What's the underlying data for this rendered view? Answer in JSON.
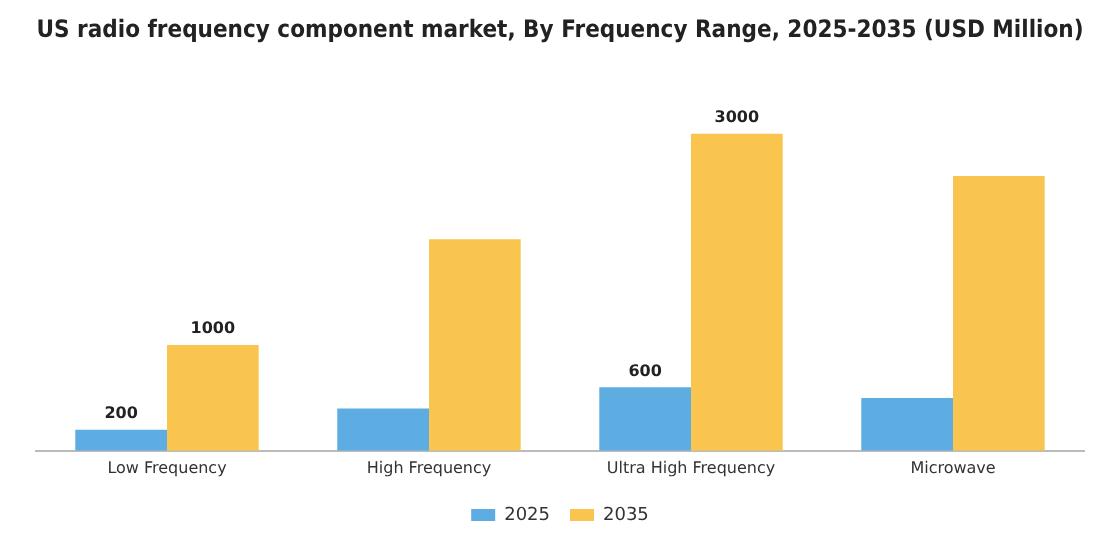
{
  "chart_data": {
    "type": "bar",
    "title": "US radio frequency component market, By Frequency Range, 2025-2035 (USD Million)",
    "categories": [
      "Low Frequency",
      "High Frequency",
      "Ultra High Frequency",
      "Microwave"
    ],
    "series": [
      {
        "name": "2025",
        "color": "#5dade2",
        "values": [
          200,
          400,
          600,
          500
        ],
        "value_labels": [
          "200",
          null,
          "600",
          null
        ]
      },
      {
        "name": "2035",
        "color": "#f9c54e",
        "values": [
          1000,
          2000,
          3000,
          2600
        ],
        "value_labels": [
          "1000",
          null,
          "3000",
          null
        ]
      }
    ],
    "legend": "bottom",
    "grid": false
  }
}
